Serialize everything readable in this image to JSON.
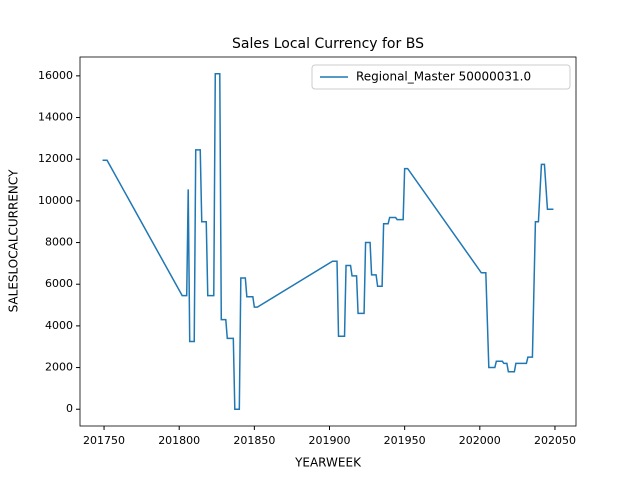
{
  "chart_data": {
    "type": "line",
    "title": "Sales Local Currency for BS",
    "xlabel": "YEARWEEK",
    "ylabel": "SALESLOCALCURRENCY",
    "x": [
      201749,
      201752,
      201802,
      201805,
      201806,
      201807,
      201810,
      201811,
      201814,
      201815,
      201818,
      201819,
      201823,
      201824,
      201827,
      201828,
      201831,
      201832,
      201836,
      201837,
      201840,
      201841,
      201844,
      201845,
      201849,
      201850,
      201852,
      201902,
      201905,
      201906,
      201910,
      201911,
      201914,
      201915,
      201918,
      201919,
      201923,
      201924,
      201927,
      201928,
      201931,
      201932,
      201935,
      201936,
      201939,
      201940,
      201944,
      201945,
      201949,
      201950,
      201952,
      202001,
      202004,
      202006,
      202010,
      202011,
      202015,
      202016,
      202018,
      202019,
      202023,
      202024,
      202031,
      202032,
      202035,
      202037,
      202039,
      202041,
      202043,
      202045,
      202049
    ],
    "series": [
      {
        "name": "Regional_Master 50000031.0",
        "color": "#1f77b4",
        "values": [
          11950,
          11950,
          5450,
          5450,
          10550,
          3250,
          3250,
          12450,
          12450,
          9000,
          9000,
          5450,
          5450,
          16100,
          16100,
          4300,
          4300,
          3400,
          3400,
          0,
          0,
          6300,
          6300,
          5400,
          5400,
          4900,
          4900,
          7100,
          7100,
          3500,
          3500,
          6900,
          6900,
          6400,
          6400,
          4600,
          4600,
          8000,
          8000,
          6450,
          6450,
          5900,
          5900,
          8900,
          8900,
          9200,
          9200,
          9100,
          9100,
          11550,
          11550,
          6550,
          6550,
          2000,
          2000,
          2300,
          2300,
          2200,
          2200,
          1800,
          1800,
          2200,
          2200,
          2500,
          2500,
          9000,
          9000,
          11750,
          11750,
          9600,
          9600
        ]
      }
    ],
    "xlim": [
      201734,
      202064
    ],
    "ylim": [
      -805,
      16905
    ],
    "xticks": [
      201750,
      201800,
      201850,
      201900,
      201950,
      202000,
      202050
    ],
    "yticks": [
      0,
      2000,
      4000,
      6000,
      8000,
      10000,
      12000,
      14000,
      16000
    ],
    "legend": "upper right"
  }
}
